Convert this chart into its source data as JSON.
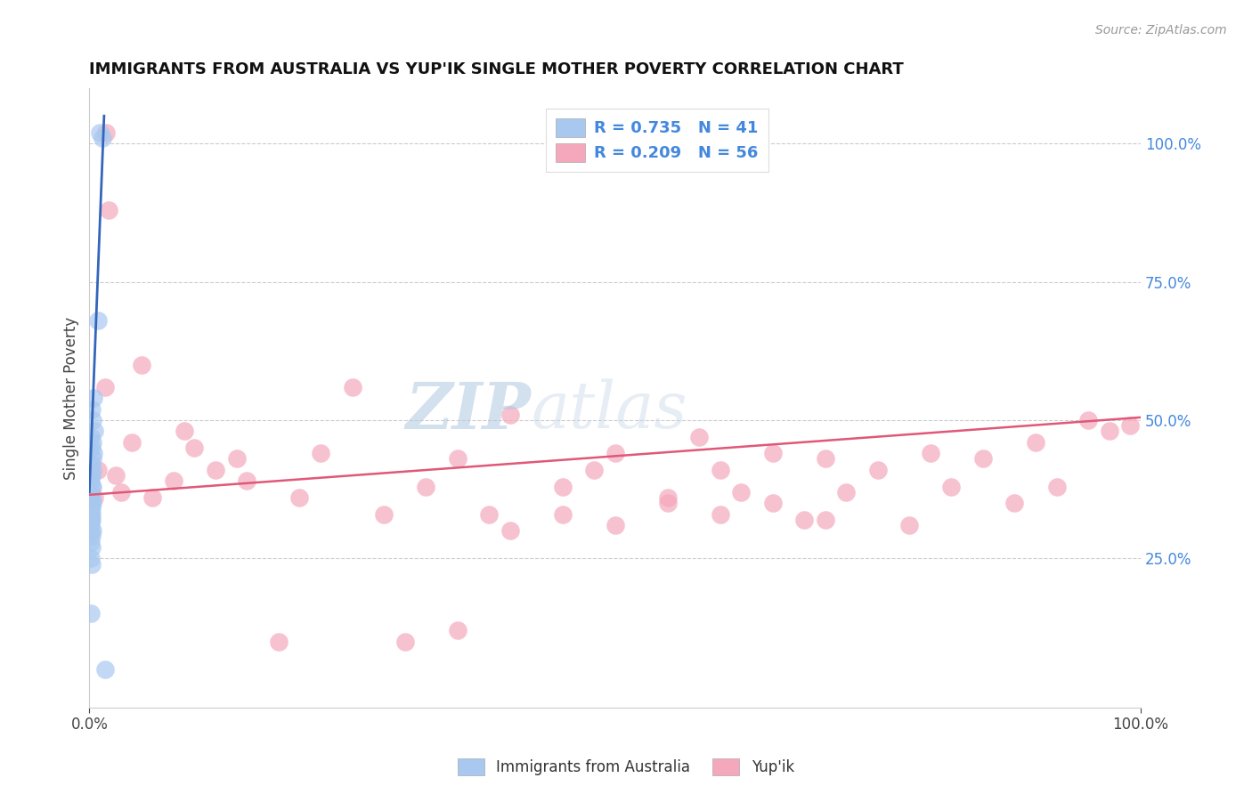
{
  "title": "IMMIGRANTS FROM AUSTRALIA VS YUP'IK SINGLE MOTHER POVERTY CORRELATION CHART",
  "source": "Source: ZipAtlas.com",
  "ylabel": "Single Mother Poverty",
  "legend_labels": [
    "Immigrants from Australia",
    "Yup'ik"
  ],
  "blue_scatter_color": "#A8C8F0",
  "pink_scatter_color": "#F5A8BC",
  "blue_line_color": "#3366BB",
  "pink_line_color": "#E05878",
  "background_color": "#FFFFFF",
  "grid_color": "#CCCCCC",
  "watermark_color": "#D8E8F5",
  "right_tick_color": "#4488DD",
  "title_color": "#111111",
  "source_color": "#999999",
  "aus_x": [
    0.01,
    0.012,
    0.008,
    0.004,
    0.002,
    0.003,
    0.005,
    0.001,
    0.003,
    0.002,
    0.004,
    0.003,
    0.001,
    0.002,
    0.003,
    0.001,
    0.002,
    0.001,
    0.003,
    0.002,
    0.001,
    0.002,
    0.001,
    0.003,
    0.002,
    0.001,
    0.002,
    0.001,
    0.002,
    0.001,
    0.002,
    0.001,
    0.003,
    0.001,
    0.002,
    0.001,
    0.002,
    0.001,
    0.002,
    0.001,
    0.015
  ],
  "aus_y": [
    1.02,
    1.01,
    0.68,
    0.54,
    0.52,
    0.5,
    0.48,
    0.47,
    0.46,
    0.45,
    0.44,
    0.43,
    0.42,
    0.42,
    0.41,
    0.4,
    0.4,
    0.39,
    0.38,
    0.38,
    0.37,
    0.36,
    0.36,
    0.35,
    0.35,
    0.34,
    0.34,
    0.33,
    0.33,
    0.32,
    0.32,
    0.31,
    0.3,
    0.3,
    0.29,
    0.28,
    0.27,
    0.25,
    0.24,
    0.15,
    0.05
  ],
  "yup_x": [
    0.005,
    0.008,
    0.015,
    0.016,
    0.018,
    0.025,
    0.03,
    0.04,
    0.05,
    0.06,
    0.08,
    0.09,
    0.1,
    0.12,
    0.14,
    0.15,
    0.18,
    0.2,
    0.22,
    0.25,
    0.28,
    0.32,
    0.35,
    0.38,
    0.4,
    0.45,
    0.48,
    0.5,
    0.55,
    0.58,
    0.6,
    0.62,
    0.65,
    0.68,
    0.7,
    0.72,
    0.75,
    0.78,
    0.8,
    0.82,
    0.85,
    0.88,
    0.9,
    0.92,
    0.95,
    0.97,
    0.99,
    0.7,
    0.65,
    0.6,
    0.55,
    0.5,
    0.45,
    0.4,
    0.35,
    0.3
  ],
  "yup_y": [
    0.36,
    0.41,
    0.56,
    1.02,
    0.88,
    0.4,
    0.37,
    0.46,
    0.6,
    0.36,
    0.39,
    0.48,
    0.45,
    0.41,
    0.43,
    0.39,
    0.1,
    0.36,
    0.44,
    0.56,
    0.33,
    0.38,
    0.43,
    0.33,
    0.51,
    0.38,
    0.41,
    0.31,
    0.36,
    0.47,
    0.41,
    0.37,
    0.44,
    0.32,
    0.43,
    0.37,
    0.41,
    0.31,
    0.44,
    0.38,
    0.43,
    0.35,
    0.46,
    0.38,
    0.5,
    0.48,
    0.49,
    0.32,
    0.35,
    0.33,
    0.35,
    0.44,
    0.33,
    0.3,
    0.12,
    0.1
  ],
  "aus_line_x": [
    0.0,
    0.014
  ],
  "aus_line_y": [
    0.37,
    1.05
  ],
  "pink_line_x": [
    0.0,
    1.0
  ],
  "pink_line_y": [
    0.365,
    0.505
  ],
  "xlim": [
    0.0,
    1.0
  ],
  "ylim": [
    -0.02,
    1.1
  ],
  "yticks": [
    0.25,
    0.5,
    0.75,
    1.0
  ],
  "ytick_labels": [
    "25.0%",
    "50.0%",
    "75.0%",
    "100.0%"
  ]
}
